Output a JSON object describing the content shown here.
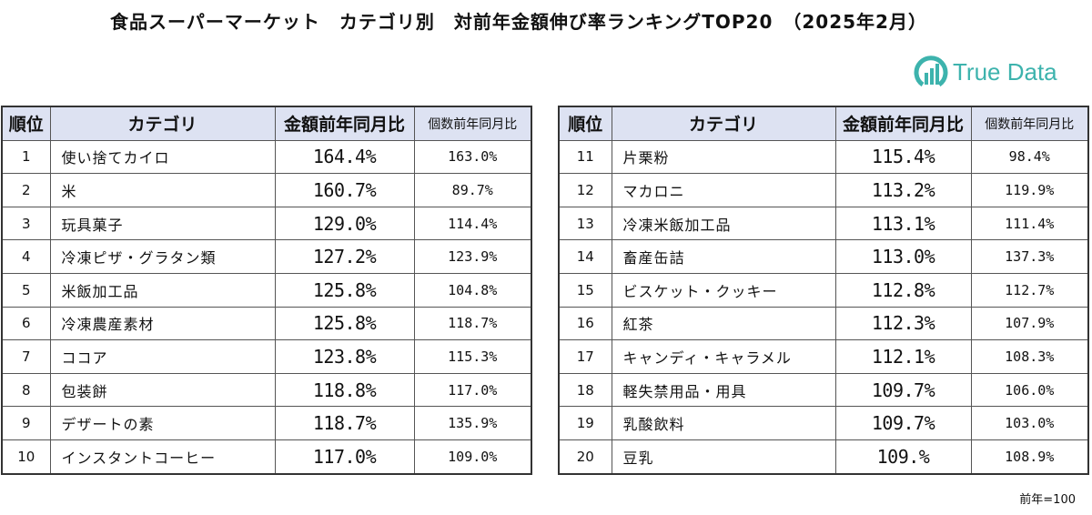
{
  "title": "食品スーパーマーケット　カテゴリ別　対前年金額伸び率ランキングTOP20　（2025年2月）",
  "logo": {
    "text": "True Data",
    "color": "#3db3ad"
  },
  "headers": {
    "rank": "順位",
    "category": "カテゴリ",
    "amount": "金額前年同月比",
    "count": "個数前年同月比"
  },
  "tables": [
    {
      "rows": [
        {
          "rank": "1",
          "category": "使い捨てカイロ",
          "amount": "164.4%",
          "count": "163.0%"
        },
        {
          "rank": "2",
          "category": "米",
          "amount": "160.7%",
          "count": "89.7%"
        },
        {
          "rank": "3",
          "category": "玩具菓子",
          "amount": "129.0%",
          "count": "114.4%"
        },
        {
          "rank": "4",
          "category": "冷凍ピザ・グラタン類",
          "amount": "127.2%",
          "count": "123.9%"
        },
        {
          "rank": "5",
          "category": "米飯加工品",
          "amount": "125.8%",
          "count": "104.8%"
        },
        {
          "rank": "6",
          "category": "冷凍農産素材",
          "amount": "125.8%",
          "count": "118.7%"
        },
        {
          "rank": "7",
          "category": "ココア",
          "amount": "123.8%",
          "count": "115.3%"
        },
        {
          "rank": "8",
          "category": "包装餅",
          "amount": "118.8%",
          "count": "117.0%"
        },
        {
          "rank": "9",
          "category": "デザートの素",
          "amount": "118.7%",
          "count": "135.9%"
        },
        {
          "rank": "10",
          "category": "インスタントコーヒー",
          "amount": "117.0%",
          "count": "109.0%"
        }
      ]
    },
    {
      "rows": [
        {
          "rank": "11",
          "category": "片栗粉",
          "amount": "115.4%",
          "count": "98.4%"
        },
        {
          "rank": "12",
          "category": "マカロニ",
          "amount": "113.2%",
          "count": "119.9%"
        },
        {
          "rank": "13",
          "category": "冷凍米飯加工品",
          "amount": "113.1%",
          "count": "111.4%"
        },
        {
          "rank": "14",
          "category": "畜産缶詰",
          "amount": "113.0%",
          "count": "137.3%"
        },
        {
          "rank": "15",
          "category": "ビスケット・クッキー",
          "amount": "112.8%",
          "count": "112.7%"
        },
        {
          "rank": "16",
          "category": "紅茶",
          "amount": "112.3%",
          "count": "107.9%"
        },
        {
          "rank": "17",
          "category": "キャンディ・キャラメル",
          "amount": "112.1%",
          "count": "108.3%"
        },
        {
          "rank": "18",
          "category": "軽失禁用品・用具",
          "amount": "109.7%",
          "count": "106.0%"
        },
        {
          "rank": "19",
          "category": "乳酸飲料",
          "amount": "109.7%",
          "count": "103.0%"
        },
        {
          "rank": "20",
          "category": "豆乳",
          "amount": "109.%",
          "count": "108.9%"
        }
      ]
    }
  ],
  "note": "前年=100"
}
